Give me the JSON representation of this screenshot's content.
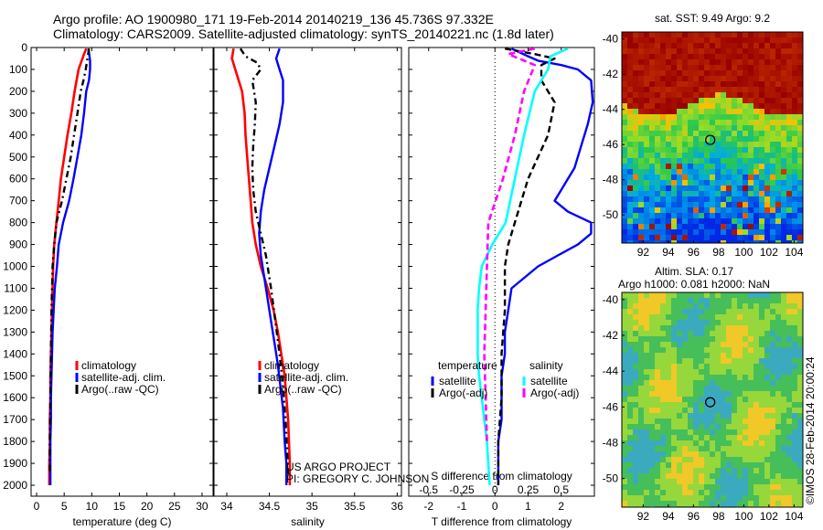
{
  "header": {
    "line1": "Argo profile: AO 1900980_171 19-Feb-2014 20140219_136 45.736S 97.332E",
    "line2": "Climatology: CARS2009. Satellite-adjusted climatology: synTS_20140221.nc (1.8d later)"
  },
  "colors": {
    "climatology": "#ff0000",
    "satellite": "#0000ff",
    "argo": "#000000",
    "sat_s": "#00ffff",
    "argo_s": "#ff00ff"
  },
  "depth_axis": {
    "range": [
      0,
      2050
    ],
    "ticks": [
      "0",
      "100",
      "200",
      "300",
      "400",
      "500",
      "600",
      "700",
      "800",
      "900",
      "1000",
      "1100",
      "1200",
      "1300",
      "1400",
      "1500",
      "1600",
      "1700",
      "1800",
      "1900",
      "2000"
    ]
  },
  "chart_data": [
    {
      "id": "temperature",
      "type": "line",
      "xlabel": "temperature (deg C)",
      "xlim": [
        -1,
        32
      ],
      "xticks": [
        0,
        5,
        10,
        15,
        20,
        25,
        30
      ],
      "xticklabels": [
        "0",
        "5",
        "10",
        "15",
        "20",
        "25",
        "30"
      ],
      "legend": [
        "climatology",
        "satellite-adj. clim.",
        "Argo(..raw -QC)"
      ],
      "series": [
        {
          "name": "climatology",
          "color": "#ff0000",
          "width": 2.6,
          "dash": "",
          "x": [
            9.0,
            8.6,
            7.6,
            6.9,
            6.3,
            5.6,
            5.0,
            4.4,
            4.0,
            3.6,
            3.2,
            3.0,
            2.9,
            2.8,
            2.7,
            2.6,
            2.5,
            2.5,
            2.4,
            2.4,
            2.3,
            2.3
          ],
          "y": [
            5,
            30,
            100,
            200,
            300,
            400,
            500,
            600,
            700,
            800,
            900,
            1000,
            1100,
            1200,
            1300,
            1400,
            1500,
            1600,
            1700,
            1800,
            1900,
            2000
          ]
        },
        {
          "name": "satellite-adj. clim.",
          "color": "#0000ff",
          "width": 2.4,
          "dash": "",
          "x": [
            9.4,
            9.7,
            9.7,
            9.5,
            9.0,
            8.6,
            8.1,
            7.4,
            6.7,
            5.9,
            4.8,
            4.0,
            3.7,
            3.3,
            3.1,
            2.9,
            2.8,
            2.7,
            2.6,
            2.6,
            2.5,
            2.5
          ],
          "y": [
            5,
            60,
            100,
            150,
            200,
            300,
            400,
            500,
            600,
            700,
            800,
            900,
            1000,
            1100,
            1200,
            1300,
            1400,
            1500,
            1600,
            1700,
            1800,
            2000
          ]
        },
        {
          "name": "Argo(..raw -QC)",
          "color": "#000000",
          "width": 2.4,
          "dash": "7,4,2,4",
          "x": [
            9.5,
            9.3,
            8.9,
            8.5,
            8.0,
            7.4,
            6.8,
            6.2,
            5.4,
            4.6,
            3.6,
            3.2,
            2.9,
            2.7,
            2.6,
            2.5,
            2.4,
            2.4
          ],
          "y": [
            5,
            40,
            100,
            150,
            200,
            300,
            400,
            500,
            600,
            700,
            800,
            900,
            1000,
            1200,
            1400,
            1600,
            1800,
            1950
          ]
        }
      ]
    },
    {
      "id": "salinity",
      "type": "line",
      "xlabel": "salinity",
      "xlim": [
        33.85,
        36.05
      ],
      "xticks": [
        34,
        34.5,
        35,
        35.5,
        36
      ],
      "xticklabels": [
        "34",
        "34.5",
        "35",
        "35.5",
        "36"
      ],
      "legend": [
        "climatology",
        "satellite-adj. clim.",
        "Argo(..raw -QC)"
      ],
      "series": [
        {
          "name": "climatology",
          "color": "#ff0000",
          "width": 2.6,
          "dash": "",
          "x": [
            34.08,
            34.06,
            34.1,
            34.18,
            34.21,
            34.22,
            34.24,
            34.26,
            34.28,
            34.3,
            34.34,
            34.4,
            34.48,
            34.55,
            34.6,
            34.64,
            34.68,
            34.7,
            34.72,
            34.73,
            34.74,
            34.74
          ],
          "y": [
            5,
            50,
            100,
            200,
            300,
            400,
            500,
            600,
            700,
            800,
            900,
            1000,
            1100,
            1200,
            1300,
            1400,
            1500,
            1600,
            1700,
            1800,
            1900,
            2000
          ]
        },
        {
          "name": "satellite-adj. clim.",
          "color": "#0000ff",
          "width": 2.4,
          "dash": "",
          "x": [
            34.62,
            34.58,
            34.62,
            34.66,
            34.66,
            34.62,
            34.56,
            34.5,
            34.44,
            34.4,
            34.38,
            34.4,
            34.44,
            34.48,
            34.52,
            34.56,
            34.6,
            34.63,
            34.66,
            34.68,
            34.7,
            34.7
          ],
          "y": [
            5,
            50,
            100,
            150,
            250,
            350,
            450,
            550,
            650,
            750,
            850,
            950,
            1050,
            1150,
            1250,
            1350,
            1450,
            1550,
            1650,
            1800,
            1900,
            2000
          ]
        },
        {
          "name": "Argo(..raw -QC)",
          "color": "#000000",
          "width": 2.4,
          "dash": "7,4,2,4",
          "x": [
            34.16,
            34.22,
            34.36,
            34.4,
            34.3,
            34.34,
            34.33,
            34.31,
            34.3,
            34.31,
            34.34,
            34.4,
            34.46,
            34.52,
            34.57,
            34.62,
            34.66,
            34.69,
            34.71,
            34.72
          ],
          "y": [
            5,
            40,
            70,
            100,
            150,
            250,
            350,
            450,
            550,
            650,
            750,
            850,
            950,
            1100,
            1250,
            1400,
            1550,
            1700,
            1850,
            1950
          ]
        }
      ]
    },
    {
      "id": "difference",
      "type": "line",
      "xlabel": "T difference from climatology",
      "xlabel_top": "S difference from climatology",
      "xlim": [
        -2.6,
        3.0
      ],
      "xticks": [
        -2,
        -1,
        0,
        1,
        2
      ],
      "xticklabels": [
        "-2",
        "-1",
        "0",
        "1",
        "2"
      ],
      "sticks": [
        -0.5,
        -0.25,
        0,
        0.25,
        0.5
      ],
      "sticklabels": [
        "-0.5",
        "-0.25",
        "0",
        "0.25",
        "0.5"
      ],
      "s_scale": 4,
      "legend_titles": [
        "temperature",
        "salinity"
      ],
      "legend": [
        "satellite",
        "Argo(-adj)",
        "satellite",
        "Argo(-adj)"
      ],
      "series": [
        {
          "name": "satellite",
          "color": "#0000ff",
          "width": 2.4,
          "dash": "",
          "kind": "T",
          "x": [
            0.5,
            1.0,
            1.3,
            2.0,
            2.5,
            2.9,
            2.95,
            2.8,
            2.6,
            2.4,
            2.2,
            2.0,
            1.8,
            2.2,
            2.9,
            2.9,
            2.5,
            1.9,
            1.3,
            0.9,
            0.5,
            0.4,
            0.3,
            0.3,
            0.2,
            0.2,
            0.2,
            0.1,
            0.1
          ],
          "y": [
            5,
            40,
            60,
            80,
            100,
            150,
            250,
            350,
            450,
            550,
            600,
            650,
            700,
            750,
            800,
            850,
            900,
            950,
            1000,
            1050,
            1100,
            1200,
            1300,
            1400,
            1500,
            1600,
            1700,
            1800,
            2000
          ]
        },
        {
          "name": "Argo(-adj)",
          "color": "#000000",
          "width": 2.4,
          "dash": "7,4",
          "kind": "T",
          "x": [
            0.3,
            1.2,
            1.8,
            1.4,
            1.4,
            1.8,
            1.6,
            1.0,
            0.6,
            0.4,
            0.3,
            0.3,
            0.2,
            0.2,
            0.1,
            0.1
          ],
          "y": [
            5,
            30,
            50,
            80,
            150,
            250,
            400,
            600,
            800,
            900,
            1000,
            1200,
            1400,
            1600,
            1800,
            2000
          ]
        },
        {
          "name": "satellite",
          "color": "#00ffff",
          "width": 2.6,
          "dash": "",
          "kind": "S",
          "x": [
            0.55,
            0.42,
            0.4,
            0.3,
            0.22,
            0.15,
            0.08,
            -0.02,
            -0.1,
            -0.12,
            -0.13,
            -0.13,
            -0.12,
            -0.1,
            -0.08,
            -0.06,
            -0.05,
            -0.04
          ],
          "y": [
            5,
            40,
            100,
            200,
            400,
            600,
            800,
            900,
            1000,
            1100,
            1200,
            1400,
            1500,
            1600,
            1700,
            1800,
            1900,
            2000
          ]
        },
        {
          "name": "Argo(-adj)",
          "color": "#ff00ff",
          "width": 2.6,
          "dash": "7,4",
          "kind": "S",
          "x": [
            0.3,
            0.1,
            0.3,
            0.22,
            0.15,
            0.06,
            -0.05,
            -0.06,
            -0.07,
            -0.08,
            -0.07,
            -0.06
          ],
          "y": [
            5,
            30,
            80,
            200,
            400,
            600,
            800,
            1000,
            1200,
            1400,
            1600,
            1800
          ]
        }
      ]
    }
  ],
  "maps": [
    {
      "id": "sst",
      "title": "sat. SST: 9.49 Argo: 9.2",
      "xlim": [
        90.3,
        104.7
      ],
      "ylim": [
        -51.6,
        -39.6
      ],
      "xticklabels": [
        "92",
        "94",
        "96",
        "98",
        "100",
        "102",
        "104"
      ],
      "xticks": [
        92,
        94,
        96,
        98,
        100,
        102,
        104
      ],
      "yticklabels": [
        "-40",
        "-42",
        "-44",
        "-46",
        "-48",
        "-50"
      ],
      "yticks": [
        -40,
        -42,
        -44,
        -46,
        -48,
        -50
      ],
      "marker": {
        "lon": 97.332,
        "lat": -45.736
      }
    },
    {
      "id": "sla",
      "title": "Altim. SLA: 0.17",
      "subtitle": "Argo h1000: 0.081 h2000: NaN",
      "xlim": [
        90.3,
        104.7
      ],
      "ylim": [
        -51.6,
        -39.6
      ],
      "xticklabels": [
        "92",
        "94",
        "96",
        "98",
        "100",
        "102",
        "104"
      ],
      "xticks": [
        92,
        94,
        96,
        98,
        100,
        102,
        104
      ],
      "yticklabels": [
        "-40",
        "-42",
        "-44",
        "-46",
        "-48",
        "-50"
      ],
      "yticks": [
        -40,
        -42,
        -44,
        -46,
        -48,
        -50
      ],
      "marker": {
        "lon": 97.332,
        "lat": -45.736
      }
    }
  ],
  "credits": {
    "project": "US ARGO PROJECT",
    "pi": "PI: GREGORY C. JOHNSON",
    "imos": "©IMOS 28-Feb-2014 20:00:24"
  }
}
